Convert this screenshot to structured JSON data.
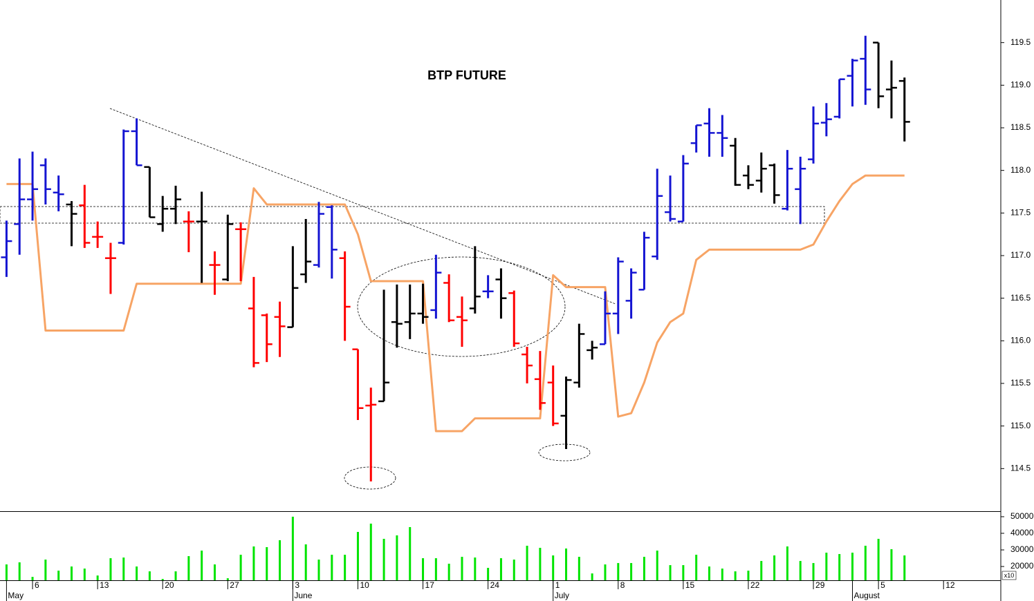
{
  "chart_data": [
    {
      "type": "ohlc",
      "title": "BTP FUTURE",
      "x": [
        0,
        1,
        2,
        3,
        4,
        5,
        6,
        7,
        8,
        9,
        10,
        11,
        12,
        13,
        14,
        15,
        16,
        17,
        18,
        19,
        20,
        21,
        22,
        23,
        24,
        25,
        26,
        27,
        28,
        29,
        30,
        31,
        32,
        33,
        34,
        35,
        36,
        37,
        38,
        39,
        40,
        41,
        42,
        43,
        44,
        45,
        46,
        47,
        48,
        49,
        50,
        51,
        52,
        53,
        54,
        55,
        56,
        57,
        58,
        59,
        60,
        61,
        62,
        63,
        64,
        65,
        66,
        67,
        68,
        69
      ],
      "open": [
        116.98,
        117.37,
        117.66,
        118.06,
        117.74,
        117.6,
        117.59,
        117.22,
        116.97,
        117.15,
        118.46,
        118.04,
        117.37,
        117.55,
        117.4,
        117.4,
        116.89,
        116.72,
        117.31,
        116.38,
        116.3,
        116.28,
        116.16,
        116.78,
        116.89,
        117.57,
        116.97,
        115.9,
        115.24,
        115.29,
        116.22,
        116.22,
        116.32,
        116.36,
        116.68,
        116.28,
        116.38,
        116.58,
        116.72,
        116.56,
        115.84,
        115.55,
        115.51,
        115.12,
        115.51,
        115.89,
        115.96,
        116.32,
        116.47,
        116.6,
        116.99,
        117.51,
        117.4,
        118.32,
        118.55,
        118.44,
        118.29,
        117.94,
        117.88,
        118.06,
        117.55,
        117.78,
        118.13,
        118.56,
        118.63,
        119.11,
        119.31,
        119.5,
        118.95,
        119.05
      ],
      "high": [
        117.41,
        118.14,
        118.22,
        118.14,
        117.94,
        117.64,
        117.83,
        117.4,
        117.15,
        118.48,
        118.61,
        118.04,
        117.7,
        117.82,
        117.52,
        117.75,
        117.05,
        117.48,
        117.39,
        116.75,
        116.32,
        116.46,
        117.11,
        117.43,
        117.63,
        117.59,
        117.05,
        115.9,
        115.45,
        116.6,
        116.66,
        116.66,
        116.67,
        117.01,
        116.78,
        116.52,
        117.11,
        116.77,
        116.85,
        116.59,
        115.93,
        115.88,
        115.71,
        115.58,
        116.2,
        116.0,
        116.58,
        116.98,
        116.85,
        117.28,
        118.02,
        117.94,
        118.18,
        118.53,
        118.73,
        118.65,
        118.38,
        118.06,
        118.21,
        118.08,
        118.24,
        118.16,
        118.75,
        118.79,
        119.07,
        119.31,
        119.58,
        119.5,
        119.29,
        119.09
      ],
      "low": [
        116.75,
        117.01,
        117.41,
        117.6,
        117.52,
        117.11,
        117.09,
        117.09,
        116.55,
        117.13,
        118.06,
        117.45,
        117.28,
        117.37,
        117.04,
        116.68,
        116.54,
        116.7,
        116.7,
        115.69,
        115.75,
        115.81,
        116.16,
        116.68,
        116.86,
        116.73,
        116.0,
        115.07,
        114.35,
        115.29,
        115.92,
        116.02,
        116.2,
        116.26,
        116.22,
        115.93,
        116.32,
        116.5,
        116.26,
        115.93,
        115.5,
        115.19,
        115.0,
        114.73,
        115.45,
        115.78,
        115.96,
        116.08,
        116.26,
        116.6,
        116.95,
        117.4,
        117.4,
        118.21,
        118.16,
        118.16,
        117.82,
        117.78,
        117.74,
        117.61,
        117.53,
        117.37,
        118.08,
        118.4,
        118.61,
        118.75,
        118.77,
        118.73,
        118.61,
        118.34
      ],
      "close": [
        117.17,
        117.66,
        117.78,
        117.78,
        117.72,
        117.49,
        117.15,
        117.22,
        116.97,
        118.46,
        118.06,
        117.45,
        117.55,
        117.66,
        117.4,
        117.4,
        116.89,
        117.37,
        117.31,
        115.74,
        115.96,
        116.17,
        116.62,
        116.93,
        117.49,
        117.07,
        116.4,
        115.21,
        115.25,
        115.51,
        116.2,
        116.32,
        116.28,
        116.8,
        116.24,
        116.24,
        116.52,
        116.58,
        116.5,
        115.97,
        115.71,
        115.27,
        115.03,
        115.54,
        116.08,
        115.92,
        116.32,
        116.93,
        116.8,
        117.21,
        117.7,
        117.43,
        118.08,
        118.53,
        118.44,
        118.38,
        117.83,
        117.83,
        118.02,
        117.71,
        118.02,
        118.02,
        118.55,
        118.6,
        119.07,
        119.29,
        118.95,
        118.87,
        118.97,
        118.57
      ],
      "colors": [
        "#1414d2",
        "#1414d2",
        "#1414d2",
        "#1414d2",
        "#1414d2",
        "#000000",
        "#ff0000",
        "#ff0000",
        "#ff0000",
        "#1414d2",
        "#1414d2",
        "#000000",
        "#000000",
        "#000000",
        "#ff0000",
        "#000000",
        "#ff0000",
        "#000000",
        "#ff0000",
        "#ff0000",
        "#ff0000",
        "#ff0000",
        "#000000",
        "#000000",
        "#1414d2",
        "#1414d2",
        "#ff0000",
        "#ff0000",
        "#ff0000",
        "#000000",
        "#000000",
        "#000000",
        "#000000",
        "#1414d2",
        "#ff0000",
        "#ff0000",
        "#000000",
        "#1414d2",
        "#000000",
        "#ff0000",
        "#ff0000",
        "#ff0000",
        "#ff0000",
        "#000000",
        "#000000",
        "#000000",
        "#1414d2",
        "#1414d2",
        "#1414d2",
        "#1414d2",
        "#1414d2",
        "#1414d2",
        "#1414d2",
        "#1414d2",
        "#1414d2",
        "#1414d2",
        "#000000",
        "#000000",
        "#000000",
        "#000000",
        "#1414d2",
        "#1414d2",
        "#1414d2",
        "#1414d2",
        "#1414d2",
        "#1414d2",
        "#1414d2",
        "#000000",
        "#000000",
        "#000000"
      ],
      "overlay": {
        "color": "#f7a465",
        "values": [
          117.84,
          117.84,
          117.84,
          116.12,
          116.12,
          116.12,
          116.12,
          116.12,
          116.12,
          116.12,
          116.67,
          116.67,
          116.67,
          116.67,
          116.67,
          116.67,
          116.67,
          116.67,
          116.67,
          117.79,
          117.6,
          117.6,
          117.6,
          117.6,
          117.6,
          117.6,
          117.6,
          117.25,
          116.7,
          116.7,
          116.7,
          116.7,
          116.7,
          114.94,
          114.94,
          114.94,
          115.09,
          115.09,
          115.09,
          115.09,
          115.09,
          115.09,
          116.77,
          116.63,
          116.63,
          116.63,
          116.63,
          115.11,
          115.15,
          115.51,
          115.98,
          116.22,
          116.32,
          116.95,
          117.07,
          117.07,
          117.07,
          117.07,
          117.07,
          117.07,
          117.07,
          117.07,
          117.13,
          117.4,
          117.64,
          117.84,
          117.94,
          117.94,
          117.94,
          117.94
        ]
      },
      "xlim": [
        -0.5,
        76.4
      ],
      "xticks": [
        {
          "value": 2,
          "label": "6"
        },
        {
          "value": 7,
          "label": "13"
        },
        {
          "value": 12,
          "label": "20"
        },
        {
          "value": 17,
          "label": "27"
        },
        {
          "value": 22,
          "label": "3"
        },
        {
          "value": 27,
          "label": "10"
        },
        {
          "value": 32,
          "label": "17"
        },
        {
          "value": 37,
          "label": "24"
        },
        {
          "value": 42,
          "label": "1"
        },
        {
          "value": 47,
          "label": "8"
        },
        {
          "value": 52,
          "label": "15"
        },
        {
          "value": 57,
          "label": "22"
        },
        {
          "value": 62,
          "label": "29"
        },
        {
          "value": 67,
          "label": "5"
        },
        {
          "value": 72,
          "label": "12"
        }
      ],
      "month_ticks": [
        {
          "value": 0,
          "label": "May"
        },
        {
          "value": 22,
          "label": "June"
        },
        {
          "value": 42,
          "label": "July"
        },
        {
          "value": 65,
          "label": "August"
        }
      ],
      "ylim": [
        114.0,
        120.0
      ],
      "yticks": [
        114.5,
        {
          "value": 115,
          "label": "115.0"
        },
        115.5,
        {
          "value": 116,
          "label": "116.0"
        },
        116.5,
        {
          "value": 117,
          "label": "117.0"
        },
        117.5,
        {
          "value": 118,
          "label": "118.0"
        },
        118.5,
        {
          "value": 119,
          "label": "119.0"
        },
        119.5
      ]
    },
    {
      "type": "bar",
      "color": "#00e400",
      "values": [
        21250,
        22500,
        13750,
        24170,
        17500,
        20000,
        18750,
        14580,
        25000,
        25400,
        20000,
        17080,
        12500,
        17080,
        26250,
        29580,
        21250,
        12920,
        27080,
        32080,
        31670,
        35830,
        50000,
        33330,
        24170,
        27080,
        27080,
        40830,
        45830,
        36670,
        38750,
        43750,
        25000,
        25000,
        21670,
        25830,
        25420,
        19170,
        25000,
        24170,
        32500,
        31250,
        26670,
        30830,
        25830,
        15830,
        21250,
        22080,
        22080,
        25830,
        29580,
        20830,
        20830,
        27080,
        20000,
        18750,
        17080,
        17500,
        23330,
        26670,
        32080,
        23330,
        22080,
        28330,
        27500,
        28330,
        32500,
        36670,
        30420,
        26670
      ],
      "ylim": [
        11700,
        52900
      ],
      "yticks": [
        20000,
        30000,
        40000,
        50000
      ],
      "multiplier_label": "x10"
    }
  ]
}
